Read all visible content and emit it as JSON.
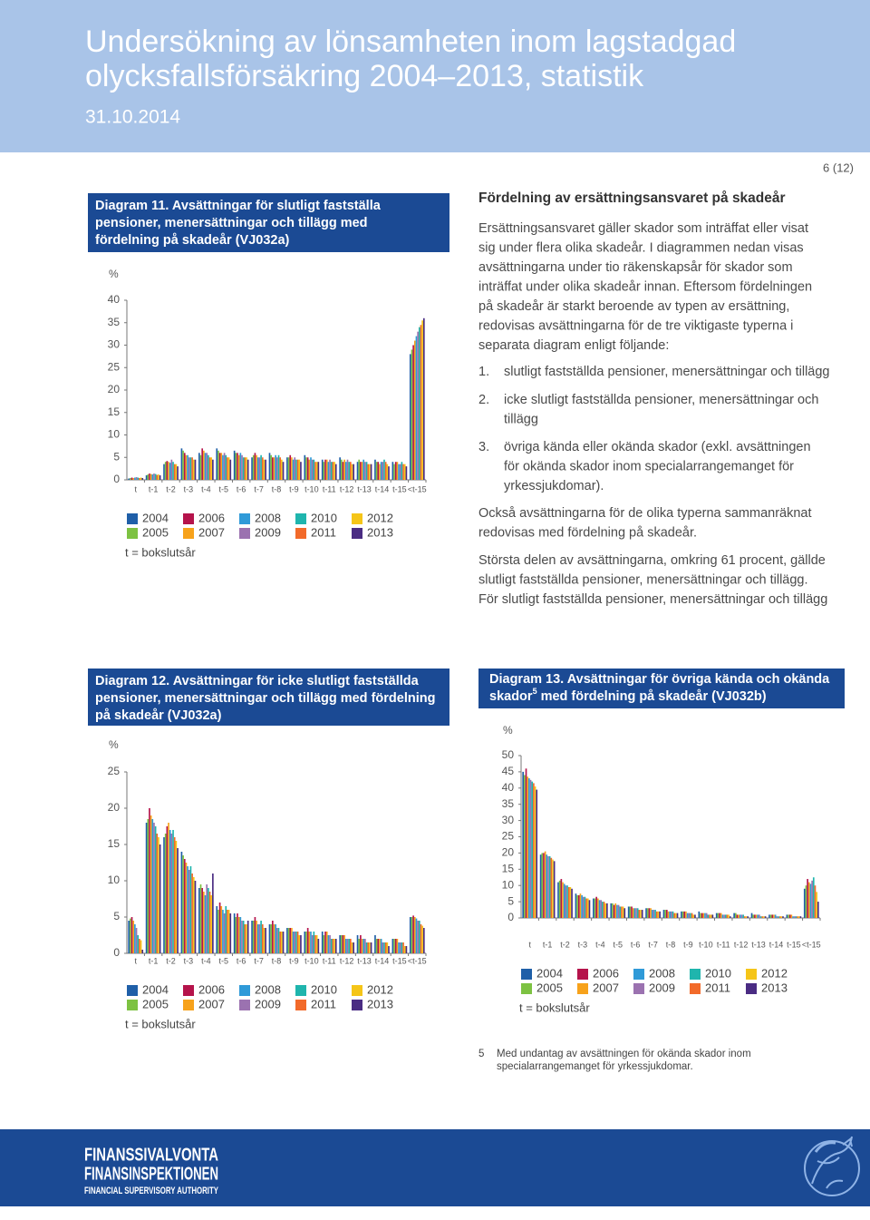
{
  "header": {
    "title": [
      "Undersökning av lönsamheten inom lagstadgad",
      "olycksfallsförsäkring 2004–2013, statistik"
    ],
    "date": "31.10.2014"
  },
  "page_number": "6 (12)",
  "text": {
    "heading": "Fördelning av ersättningsansvaret på skadeår",
    "intro": [
      "Ersättningsansvaret gäller skador som inträffat eller visat",
      "sig under flera olika skadeår. I diagrammen nedan visas",
      "avsättningarna under tio räkenskapsår för skador som",
      "inträffat under olika skadeår innan. Eftersom fördelningen",
      "på skadeår är starkt beroende av typen av ersättning,",
      "redovisas avsättningarna för de tre viktigaste typerna i",
      "separata diagram enligt följande:"
    ],
    "list": [
      {
        "marker": "1.",
        "lines": [
          "slutligt fastställda pensioner, menersättningar och tillägg"
        ]
      },
      {
        "marker": "2.",
        "lines": [
          "icke slutligt fastställda pensioner, menersättningar och",
          "tillägg"
        ]
      },
      {
        "marker": "3.",
        "lines": [
          "övriga kända eller okända skador (exkl. avsättningen",
          "för okända skador inom specialarrangemanget för",
          "yrkessjukdomar)."
        ]
      }
    ],
    "paragraphs": [
      [
        "Också avsättningarna för de olika typerna sammanräknat",
        "redovisas med fördelning på skadeår."
      ],
      [
        "Största delen av avsättningarna, omkring 61 procent, gällde",
        "slutligt fastställda pensioner, menersättningar och tillägg.",
        "För slutligt fastställda pensioner, menersättningar och tillägg"
      ]
    ]
  },
  "chart_data": [
    {
      "type": "bar",
      "title": [
        "Diagram 11. Avsättningar för slutligt fastställa",
        "pensioner, menersättningar och tillägg med",
        "fördelning på skadeår (VJ032a)"
      ],
      "y_label": "%",
      "note": "t = bokslutsår",
      "categories": [
        "t",
        "t-1",
        "t-2",
        "t-3",
        "t-4",
        "t-5",
        "t-6",
        "t-7",
        "t-8",
        "t-9",
        "t-10",
        "t-11",
        "t-12",
        "t-13",
        "t-14",
        "t-15",
        "<t-15"
      ],
      "ylim": [
        0,
        40
      ],
      "yticks": [
        0,
        5,
        10,
        15,
        20,
        25,
        30,
        35,
        40
      ],
      "series": [
        {
          "name": "2004",
          "color": "#1f5fa8",
          "values": [
            0.3,
            1.0,
            3.5,
            7.0,
            6.0,
            7.0,
            6.5,
            5.0,
            6.0,
            5.0,
            5.5,
            4.5,
            5.0,
            4.0,
            4.5,
            4.0,
            28.0
          ]
        },
        {
          "name": "2005",
          "color": "#7dc242",
          "values": [
            0.4,
            1.2,
            4.0,
            6.5,
            5.5,
            6.5,
            6.0,
            5.5,
            5.5,
            5.0,
            5.0,
            4.0,
            4.5,
            4.5,
            4.0,
            3.5,
            29.0
          ]
        },
        {
          "name": "2006",
          "color": "#b5134b",
          "values": [
            0.5,
            1.4,
            4.2,
            6.0,
            7.0,
            6.0,
            6.0,
            6.0,
            5.0,
            5.5,
            5.0,
            4.5,
            4.0,
            4.0,
            4.0,
            4.0,
            30.0
          ]
        },
        {
          "name": "2007",
          "color": "#f7a21b",
          "values": [
            0.4,
            1.3,
            4.0,
            5.5,
            6.5,
            6.0,
            5.5,
            5.5,
            5.0,
            5.0,
            4.5,
            4.5,
            4.5,
            4.0,
            3.5,
            4.0,
            31.0
          ]
        },
        {
          "name": "2008",
          "color": "#2f9ad8",
          "values": [
            0.5,
            1.2,
            3.8,
            5.5,
            6.0,
            5.5,
            6.0,
            5.0,
            5.5,
            4.5,
            5.0,
            4.0,
            4.0,
            4.5,
            4.0,
            3.5,
            32.0
          ]
        },
        {
          "name": "2009",
          "color": "#9b72b0",
          "values": [
            0.6,
            1.4,
            4.5,
            5.0,
            6.0,
            6.0,
            5.5,
            5.0,
            5.0,
            5.0,
            4.5,
            4.5,
            4.5,
            4.0,
            4.0,
            3.5,
            33.0
          ]
        },
        {
          "name": "2010",
          "color": "#1fb5ad",
          "values": [
            0.5,
            1.3,
            4.0,
            5.0,
            5.5,
            5.5,
            5.0,
            5.5,
            5.5,
            4.5,
            4.5,
            4.0,
            4.0,
            4.0,
            4.5,
            4.0,
            34.0
          ]
        },
        {
          "name": "2011",
          "color": "#f26a2a",
          "values": [
            0.4,
            1.1,
            3.5,
            5.0,
            5.0,
            5.0,
            5.0,
            5.0,
            5.0,
            4.5,
            4.0,
            4.0,
            4.0,
            3.5,
            4.0,
            3.5,
            34.5
          ]
        },
        {
          "name": "2012",
          "color": "#f5c518",
          "values": [
            0.5,
            1.2,
            3.5,
            4.5,
            5.0,
            5.0,
            5.0,
            4.5,
            4.5,
            4.5,
            4.0,
            4.0,
            3.5,
            3.5,
            3.5,
            3.5,
            35.5
          ]
        },
        {
          "name": "2013",
          "color": "#4a2c83",
          "values": [
            0.4,
            1.0,
            3.0,
            4.5,
            4.5,
            4.5,
            4.5,
            4.5,
            4.0,
            4.0,
            4.0,
            3.5,
            3.5,
            3.5,
            3.0,
            3.0,
            36.0
          ]
        }
      ]
    },
    {
      "type": "bar",
      "title": [
        "Diagram 12. Avsättningar för icke slutligt fastställda",
        "pensioner, menersättningar och tillägg med fördelning",
        "på skadeår (VJ032a)"
      ],
      "y_label": "%",
      "note": "t = bokslutsår",
      "categories": [
        "t",
        "t-1",
        "t-2",
        "t-3",
        "t-4",
        "t-5",
        "t-6",
        "t-7",
        "t-8",
        "t-9",
        "t-10",
        "t-11",
        "t-12",
        "t-13",
        "t-14",
        "t-15",
        "<t-15"
      ],
      "ylim": [
        0,
        25
      ],
      "yticks": [
        0,
        5,
        10,
        15,
        20,
        25
      ],
      "series": [
        {
          "name": "2004",
          "color": "#1f5fa8",
          "values": [
            4.5,
            18.0,
            16.0,
            14.0,
            9.0,
            6.5,
            5.5,
            4.5,
            4.0,
            3.5,
            3.0,
            3.0,
            2.5,
            2.5,
            2.5,
            2.0,
            5.0
          ]
        },
        {
          "name": "2005",
          "color": "#7dc242",
          "values": [
            4.8,
            18.5,
            16.5,
            13.5,
            9.5,
            6.0,
            5.0,
            4.5,
            4.0,
            3.5,
            3.0,
            2.5,
            2.5,
            2.0,
            2.0,
            2.0,
            5.0
          ]
        },
        {
          "name": "2006",
          "color": "#b5134b",
          "values": [
            5.0,
            20.0,
            17.5,
            13.0,
            9.0,
            7.0,
            5.5,
            5.0,
            4.5,
            3.5,
            3.5,
            3.0,
            2.5,
            2.5,
            2.0,
            2.0,
            5.2
          ]
        },
        {
          "name": "2007",
          "color": "#f7a21b",
          "values": [
            4.5,
            19.0,
            18.0,
            12.5,
            8.5,
            6.5,
            5.0,
            4.5,
            4.0,
            3.5,
            3.0,
            3.0,
            2.5,
            2.0,
            2.0,
            2.0,
            5.0
          ]
        },
        {
          "name": "2008",
          "color": "#2f9ad8",
          "values": [
            4.0,
            18.5,
            17.0,
            12.0,
            8.0,
            6.0,
            5.0,
            4.0,
            4.0,
            3.0,
            3.0,
            2.5,
            2.0,
            2.0,
            2.0,
            1.5,
            4.8
          ]
        },
        {
          "name": "2009",
          "color": "#9b72b0",
          "values": [
            3.5,
            18.0,
            16.5,
            11.5,
            9.5,
            5.5,
            4.5,
            4.0,
            3.5,
            3.0,
            2.5,
            2.5,
            2.0,
            2.0,
            1.5,
            1.5,
            4.5
          ]
        },
        {
          "name": "2010",
          "color": "#1fb5ad",
          "values": [
            2.5,
            17.5,
            17.0,
            12.0,
            9.0,
            6.5,
            4.5,
            4.5,
            3.5,
            3.0,
            3.0,
            2.0,
            2.0,
            1.5,
            1.5,
            1.5,
            4.5
          ]
        },
        {
          "name": "2011",
          "color": "#f26a2a",
          "values": [
            2.0,
            16.5,
            16.0,
            11.0,
            8.5,
            6.0,
            4.0,
            4.0,
            3.0,
            3.0,
            2.5,
            2.0,
            2.0,
            1.5,
            1.5,
            1.5,
            4.0
          ]
        },
        {
          "name": "2012",
          "color": "#f5c518",
          "values": [
            1.8,
            16.0,
            15.5,
            10.5,
            8.0,
            6.0,
            4.0,
            3.5,
            3.0,
            2.5,
            2.5,
            2.0,
            1.5,
            1.5,
            1.5,
            1.0,
            3.8
          ]
        },
        {
          "name": "2013",
          "color": "#4a2c83",
          "values": [
            0.5,
            15.0,
            14.5,
            10.0,
            11.0,
            5.5,
            4.5,
            3.5,
            3.0,
            2.5,
            2.0,
            2.0,
            1.5,
            1.5,
            1.0,
            1.0,
            3.5
          ]
        }
      ]
    },
    {
      "type": "bar",
      "title": [
        "Diagram 13. Avsättningar för övriga kända och okända",
        "skador",
        "med fördelning på skadeår (VJ032b)"
      ],
      "title_footnote": "5",
      "y_label": "%",
      "note": "t = bokslutsår",
      "categories": [
        "t",
        "t-1",
        "t-2",
        "t-3",
        "t-4",
        "t-5",
        "t-6",
        "t-7",
        "t-8",
        "t-9",
        "t-10",
        "t-11",
        "t-12",
        "t-13",
        "t-14",
        "t-15",
        "<t-15"
      ],
      "ylim": [
        0,
        50
      ],
      "yticks": [
        0,
        5,
        10,
        15,
        20,
        25,
        30,
        35,
        40,
        45,
        50
      ],
      "series": [
        {
          "name": "2004",
          "color": "#1f5fa8",
          "values": [
            45.0,
            19.5,
            11.0,
            7.5,
            6.0,
            4.5,
            3.5,
            3.0,
            2.5,
            2.0,
            2.0,
            1.5,
            1.5,
            1.5,
            1.0,
            1.0,
            9.0
          ]
        },
        {
          "name": "2005",
          "color": "#7dc242",
          "values": [
            44.0,
            20.0,
            11.5,
            7.0,
            6.0,
            4.5,
            3.5,
            3.0,
            2.5,
            2.0,
            1.5,
            1.5,
            1.5,
            1.0,
            1.0,
            1.0,
            10.0
          ]
        },
        {
          "name": "2006",
          "color": "#b5134b",
          "values": [
            46.0,
            20.0,
            12.0,
            7.0,
            6.5,
            4.0,
            3.5,
            3.0,
            2.5,
            2.0,
            1.5,
            1.5,
            1.0,
            1.0,
            1.0,
            1.0,
            12.0
          ]
        },
        {
          "name": "2007",
          "color": "#f7a21b",
          "values": [
            43.5,
            20.5,
            11.0,
            7.5,
            6.0,
            4.5,
            3.0,
            3.0,
            2.0,
            2.0,
            1.5,
            1.5,
            1.0,
            1.0,
            1.0,
            1.0,
            11.0
          ]
        },
        {
          "name": "2008",
          "color": "#2f9ad8",
          "values": [
            43.0,
            19.5,
            10.5,
            7.0,
            5.5,
            4.0,
            3.0,
            2.5,
            2.0,
            1.5,
            1.5,
            1.0,
            1.0,
            1.0,
            1.0,
            0.5,
            10.5
          ]
        },
        {
          "name": "2009",
          "color": "#9b72b0",
          "values": [
            42.5,
            19.0,
            10.0,
            6.5,
            5.5,
            4.0,
            3.0,
            2.5,
            2.0,
            1.5,
            1.5,
            1.0,
            1.0,
            1.0,
            0.5,
            0.5,
            11.5
          ]
        },
        {
          "name": "2010",
          "color": "#1fb5ad",
          "values": [
            42.0,
            19.0,
            10.0,
            6.5,
            5.0,
            3.5,
            3.0,
            2.5,
            2.0,
            1.5,
            1.0,
            1.0,
            1.0,
            0.5,
            0.5,
            0.5,
            12.5
          ]
        },
        {
          "name": "2011",
          "color": "#f26a2a",
          "values": [
            41.5,
            18.5,
            9.5,
            6.0,
            5.0,
            3.5,
            2.5,
            2.0,
            1.5,
            1.5,
            1.0,
            1.0,
            0.5,
            0.5,
            0.5,
            0.5,
            10.0
          ]
        },
        {
          "name": "2012",
          "color": "#f5c518",
          "values": [
            40.5,
            18.0,
            9.5,
            6.0,
            4.5,
            3.5,
            2.5,
            2.0,
            1.5,
            1.0,
            1.0,
            1.0,
            0.5,
            0.5,
            0.5,
            0.5,
            8.0
          ]
        },
        {
          "name": "2013",
          "color": "#4a2c83",
          "values": [
            39.5,
            17.5,
            9.0,
            5.5,
            4.5,
            3.0,
            2.5,
            2.0,
            1.5,
            1.0,
            1.0,
            0.5,
            0.5,
            0.5,
            0.5,
            0.5,
            5.0
          ]
        }
      ]
    }
  ],
  "footnote": {
    "marker": "5",
    "lines": [
      "Med undantag av avsättningen för okända skador inom",
      "specialarrangemanget för yrkessjukdomar."
    ]
  },
  "footer": {
    "lines": [
      "FINANSSIVALVONTA",
      "FINANSINSPEKTIONEN",
      "FINANCIAL SUPERVISORY AUTHORITY"
    ]
  }
}
